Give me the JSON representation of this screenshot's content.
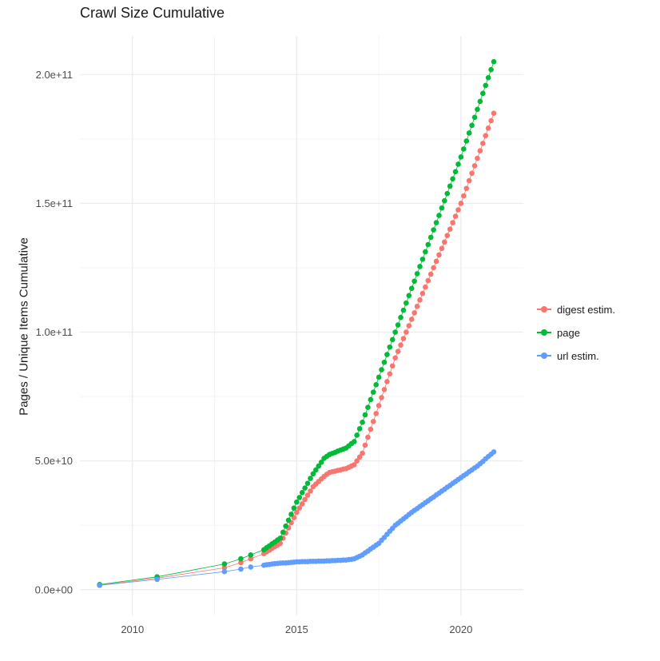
{
  "title": "Crawl Size Cumulative",
  "ylabel": "Pages / Unique Items Cumulative",
  "legend": {
    "items": [
      {
        "label": "digest estim.",
        "color": "#F8766D"
      },
      {
        "label": "page",
        "color": "#00BA38"
      },
      {
        "label": "url estim.",
        "color": "#619CFF"
      }
    ]
  },
  "chart_data": {
    "type": "scatter",
    "title": "Crawl Size Cumulative",
    "xlabel": "",
    "ylabel": "Pages / Unique Items Cumulative",
    "legend_position": "right",
    "grid": true,
    "y_unit": 1000000000,
    "xlim": [
      2008.4,
      2021.9
    ],
    "ylim": [
      -10,
      215
    ],
    "x_ticks": [
      {
        "value": 2010,
        "label": "2010"
      },
      {
        "value": 2015,
        "label": "2015"
      },
      {
        "value": 2020,
        "label": "2020"
      }
    ],
    "x_minor": [
      2012.5,
      2017.5
    ],
    "y_ticks": [
      {
        "value": 0,
        "label": "0.0e+00"
      },
      {
        "value": 50,
        "label": "5.0e+10"
      },
      {
        "value": 100,
        "label": "1.0e+11"
      },
      {
        "value": 150,
        "label": "1.5e+11"
      },
      {
        "value": 200,
        "label": "2.0e+11"
      }
    ],
    "y_minor": [
      25,
      75,
      125,
      175
    ],
    "x": [
      2009,
      2010.75,
      2012.8,
      2013.3,
      2013.6,
      2014,
      2014.083,
      2014.167,
      2014.25,
      2014.333,
      2014.417,
      2014.5,
      2014.583,
      2014.667,
      2014.75,
      2014.833,
      2014.917,
      2015,
      2015.083,
      2015.167,
      2015.25,
      2015.333,
      2015.417,
      2015.5,
      2015.583,
      2015.667,
      2015.75,
      2015.833,
      2015.917,
      2016,
      2016.083,
      2016.167,
      2016.25,
      2016.333,
      2016.417,
      2016.5,
      2016.583,
      2016.667,
      2016.75,
      2016.833,
      2016.917,
      2017,
      2017.083,
      2017.167,
      2017.25,
      2017.333,
      2017.417,
      2017.5,
      2017.583,
      2017.667,
      2017.75,
      2017.833,
      2017.917,
      2018,
      2018.083,
      2018.167,
      2018.25,
      2018.333,
      2018.417,
      2018.5,
      2018.583,
      2018.667,
      2018.75,
      2018.833,
      2018.917,
      2019,
      2019.083,
      2019.167,
      2019.25,
      2019.333,
      2019.417,
      2019.5,
      2019.583,
      2019.667,
      2019.75,
      2019.833,
      2019.917,
      2020,
      2020.083,
      2020.167,
      2020.25,
      2020.333,
      2020.417,
      2020.5,
      2020.583,
      2020.667,
      2020.75,
      2020.833,
      2020.917,
      2021
    ],
    "series": [
      {
        "name": "digest estim.",
        "color": "#F8766D",
        "values": [
          1.8,
          4.5,
          8.5,
          10.5,
          12.0,
          14.0,
          14.7,
          15.3,
          16.0,
          16.7,
          17.3,
          18.0,
          20.0,
          22.0,
          24.0,
          26.0,
          28.0,
          30.0,
          31.7,
          33.3,
          35.0,
          36.7,
          38.3,
          40.0,
          41.0,
          42.0,
          43.0,
          44.0,
          44.8,
          45.5,
          45.8,
          46.0,
          46.3,
          46.5,
          46.8,
          47.0,
          47.5,
          48.0,
          48.5,
          50.0,
          51.5,
          53.0,
          56.1,
          59.2,
          62.3,
          65.3,
          68.4,
          71.5,
          74.6,
          77.7,
          80.8,
          83.8,
          86.9,
          90.0,
          92.5,
          95.0,
          97.5,
          100.0,
          102.5,
          105.0,
          107.5,
          110.0,
          112.5,
          115.0,
          117.5,
          120.0,
          122.5,
          125.0,
          127.5,
          130.0,
          132.5,
          135.0,
          137.5,
          140.0,
          142.5,
          145.0,
          147.5,
          150.0,
          152.9,
          155.8,
          158.8,
          161.7,
          164.6,
          167.5,
          170.4,
          173.3,
          176.3,
          179.2,
          182.1,
          185.0
        ]
      },
      {
        "name": "page",
        "color": "#00BA38",
        "values": [
          2.0,
          5.0,
          10.0,
          12.0,
          13.5,
          15.5,
          16.3,
          17.0,
          17.8,
          18.5,
          19.3,
          20.0,
          22.3,
          24.7,
          27.0,
          29.3,
          31.7,
          34.0,
          35.8,
          37.7,
          39.5,
          41.3,
          43.2,
          45.0,
          46.5,
          48.0,
          49.5,
          51.0,
          51.8,
          52.5,
          52.9,
          53.3,
          53.8,
          54.2,
          54.6,
          55.0,
          55.8,
          56.7,
          57.5,
          60.0,
          62.5,
          65.0,
          67.9,
          70.8,
          73.8,
          76.7,
          79.6,
          82.5,
          85.4,
          88.3,
          91.3,
          94.2,
          97.1,
          100.0,
          102.8,
          105.7,
          108.5,
          111.3,
          114.2,
          117.0,
          119.8,
          122.7,
          125.5,
          128.3,
          131.2,
          134.0,
          136.8,
          139.7,
          142.5,
          145.3,
          148.2,
          151.0,
          153.8,
          156.7,
          159.5,
          162.3,
          165.2,
          168.0,
          171.1,
          174.2,
          177.3,
          180.3,
          183.4,
          186.5,
          189.6,
          192.7,
          195.8,
          198.8,
          201.9,
          205.0
        ]
      },
      {
        "name": "url estim.",
        "color": "#619CFF",
        "values": [
          1.7,
          4.0,
          7.0,
          8.0,
          8.8,
          9.5,
          9.7,
          9.8,
          10.0,
          10.1,
          10.2,
          10.3,
          10.4,
          10.4,
          10.5,
          10.6,
          10.7,
          10.8,
          10.8,
          10.9,
          10.9,
          10.9,
          11.0,
          11.0,
          11.0,
          11.1,
          11.1,
          11.1,
          11.2,
          11.2,
          11.3,
          11.3,
          11.4,
          11.4,
          11.5,
          11.5,
          11.7,
          11.8,
          12.0,
          12.5,
          13.0,
          13.5,
          14.3,
          15.0,
          15.8,
          16.5,
          17.3,
          18.0,
          19.2,
          20.3,
          21.5,
          22.7,
          23.8,
          25.0,
          25.8,
          26.7,
          27.5,
          28.3,
          29.2,
          30.0,
          30.8,
          31.5,
          32.3,
          33.0,
          33.8,
          34.5,
          35.3,
          36.0,
          36.8,
          37.5,
          38.3,
          39.0,
          39.8,
          40.5,
          41.3,
          42.0,
          42.8,
          43.5,
          44.3,
          45.0,
          45.8,
          46.5,
          47.3,
          48.0,
          48.9,
          49.8,
          50.8,
          51.7,
          52.6,
          53.5
        ]
      }
    ],
    "style": {
      "grid_major_color": "#ebebeb",
      "grid_minor_color": "#f3f3f3",
      "tick_label_color": "#4d4d4d",
      "point_radius": 3.3,
      "line_width": 0.8
    }
  }
}
